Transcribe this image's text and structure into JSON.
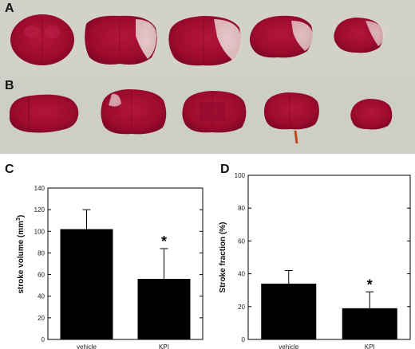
{
  "panels": {
    "A": "A",
    "B": "B",
    "C": "C",
    "D": "D"
  },
  "colors": {
    "tissue": "#a30d32",
    "infarct": "#e9dfdc",
    "photo_background": "#cfd0c9",
    "bar": "#000000"
  },
  "chart_data": [
    {
      "type": "bar",
      "categories": [
        "vehicle",
        "KPI"
      ],
      "values": [
        102,
        56
      ],
      "error_upper": [
        18,
        28
      ],
      "significance": [
        "",
        "*"
      ],
      "ylabel": "stroke volume (mm³)",
      "ylabel_text": "stroke volume (mm",
      "ylabel_superscript": "3",
      "ylabel_close": ")",
      "ylim": [
        0,
        140
      ],
      "yticks": [
        "0",
        "20",
        "40",
        "60",
        "80",
        "100",
        "120",
        "140"
      ],
      "grid": false
    },
    {
      "type": "bar",
      "categories": [
        "vehicle",
        "KPI"
      ],
      "values": [
        34,
        19
      ],
      "error_upper": [
        8,
        10
      ],
      "significance": [
        "",
        "*"
      ],
      "ylabel": "Stroke fraction (%)",
      "ylim": [
        0,
        100
      ],
      "yticks": [
        "0",
        "20",
        "40",
        "60",
        "80",
        "100"
      ],
      "grid": false
    }
  ]
}
